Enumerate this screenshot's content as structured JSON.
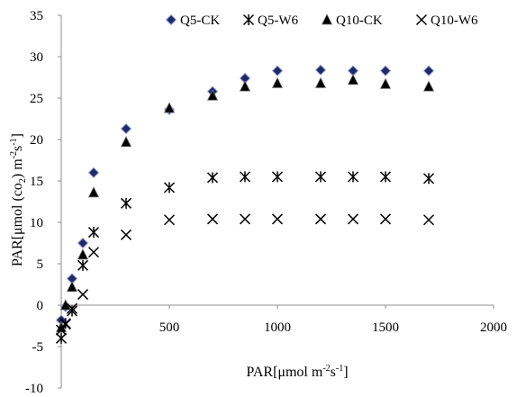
{
  "chart_data": {
    "type": "scatter",
    "title": "",
    "xlabel": {
      "prefix": "PAR[μmol m",
      "sup1": "-2",
      "mid": "s",
      "sup2": "-1",
      "suffix": "]"
    },
    "ylabel": {
      "prefix": "PAR[μmol (co",
      "sub": "2",
      "mid": ") m",
      "sup1": "-2",
      "mid2": "s",
      "sup2": "-1",
      "suffix": "]"
    },
    "xlim": [
      0,
      2000
    ],
    "ylim": [
      -10,
      35
    ],
    "x_ticks": [
      500,
      1000,
      1500,
      2000
    ],
    "y_ticks": [
      35,
      30,
      25,
      20,
      15,
      10,
      5,
      0,
      -5,
      -10
    ],
    "grid": false,
    "legend_position": "top",
    "series": [
      {
        "name": "Q5-CK",
        "marker": "diamond",
        "color": "#1f2a6b",
        "x": [
          0,
          20,
          50,
          100,
          150,
          300,
          500,
          700,
          850,
          1000,
          1200,
          1350,
          1500,
          1700
        ],
        "y": [
          -1.8,
          -0.2,
          3.2,
          7.5,
          16.0,
          21.3,
          23.6,
          25.8,
          27.4,
          28.3,
          28.4,
          28.3,
          28.3,
          28.3
        ]
      },
      {
        "name": "Q5-W6",
        "marker": "asterisk",
        "color": "#000000",
        "x": [
          0,
          20,
          50,
          100,
          150,
          300,
          500,
          700,
          850,
          1000,
          1200,
          1350,
          1500,
          1700
        ],
        "y": [
          -4.0,
          -2.2,
          -0.7,
          4.8,
          8.8,
          12.3,
          14.2,
          15.4,
          15.5,
          15.5,
          15.5,
          15.5,
          15.5,
          15.3
        ]
      },
      {
        "name": "Q10-CK",
        "marker": "triangle",
        "color": "#000000",
        "x": [
          0,
          20,
          50,
          100,
          150,
          300,
          500,
          700,
          850,
          1000,
          1200,
          1350,
          1500,
          1700
        ],
        "y": [
          -2.7,
          0.0,
          2.2,
          6.1,
          13.6,
          19.7,
          23.8,
          25.3,
          26.4,
          26.8,
          26.8,
          27.2,
          26.7,
          26.4
        ]
      },
      {
        "name": "Q10-W6",
        "marker": "x",
        "color": "#000000",
        "x": [
          0,
          20,
          50,
          100,
          150,
          300,
          500,
          700,
          850,
          1000,
          1200,
          1350,
          1500,
          1700
        ],
        "y": [
          -3.0,
          -2.3,
          -0.4,
          1.3,
          6.4,
          8.5,
          10.3,
          10.4,
          10.4,
          10.4,
          10.4,
          10.4,
          10.4,
          10.3
        ]
      }
    ]
  }
}
